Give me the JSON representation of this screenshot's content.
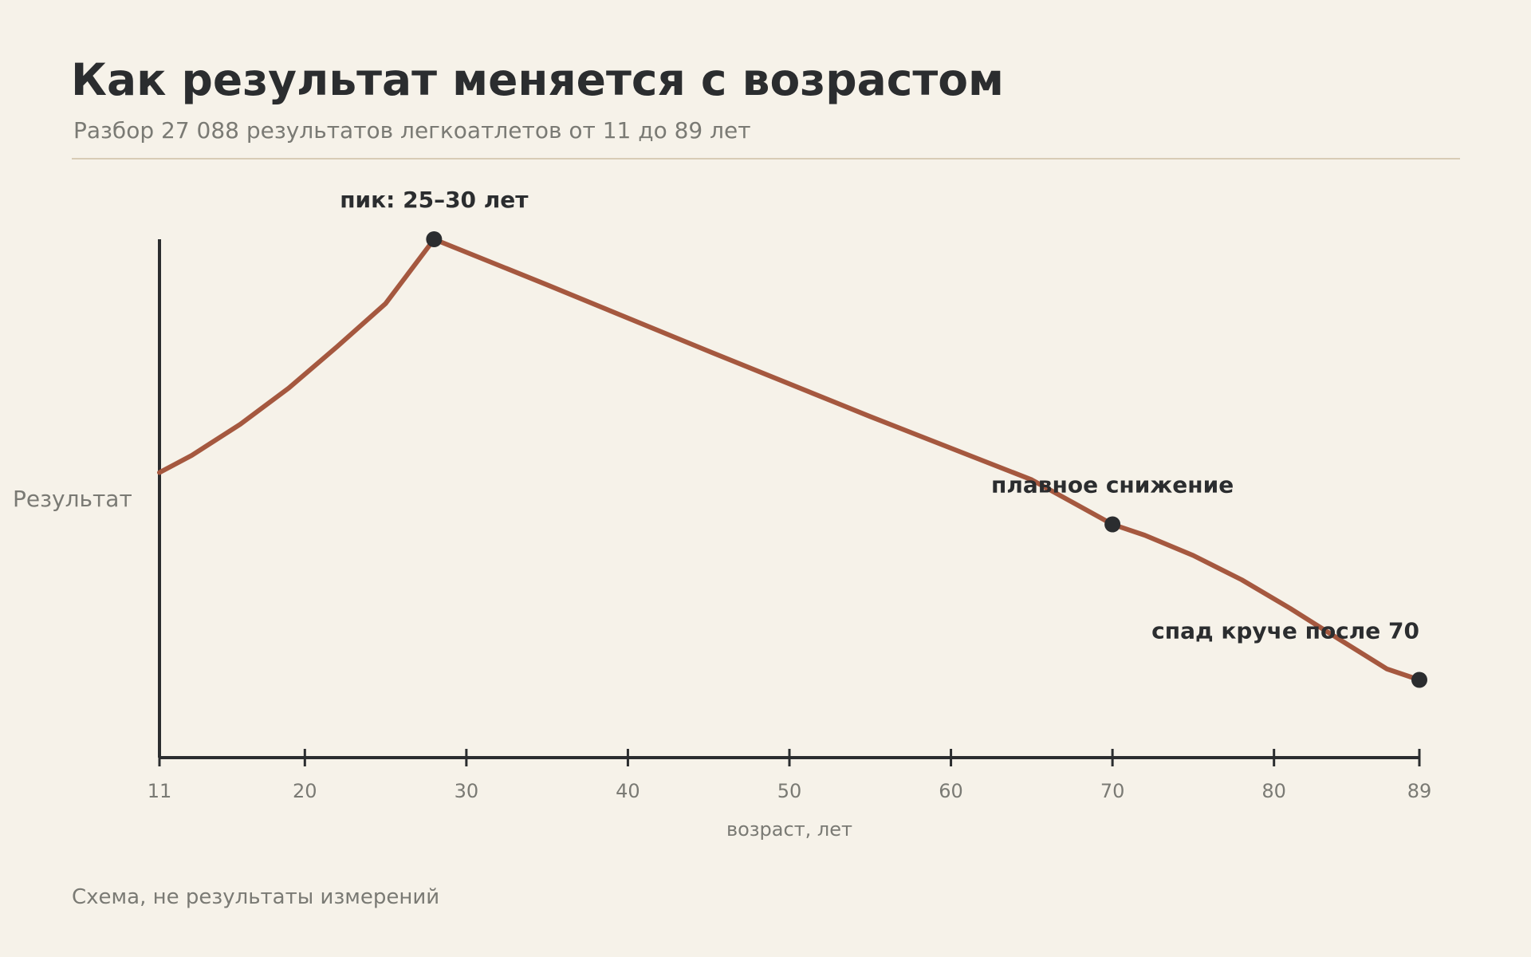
{
  "header": {
    "title": "Как результат меняется с возрастом",
    "subtitle": "Разбор 27 088 результатов легкоатлетов от 11 до 89 лет"
  },
  "footnote": "Схема, не результаты измерений",
  "colors": {
    "background": "#f6f2e9",
    "curve": "#a5583f",
    "axis": "#2b2d2f",
    "marker": "#2b2d2f",
    "muted_text": "#7a7a74",
    "rule": "#d8ccb6"
  },
  "chart_data": {
    "type": "line",
    "title": "",
    "xlabel": "возраст, лет",
    "ylabel": "Результат",
    "xlim": [
      11,
      89
    ],
    "ylim": [
      0,
      100
    ],
    "grid": false,
    "x_ticks": [
      11,
      20,
      30,
      40,
      50,
      60,
      70,
      80,
      89
    ],
    "y_ticks_shown": false,
    "series": [
      {
        "x": [
          11,
          13,
          16,
          19,
          22,
          25,
          28,
          35,
          45,
          55,
          65,
          70,
          72,
          75,
          78,
          81,
          84,
          87,
          89
        ],
        "values": [
          55,
          58.3,
          64.3,
          71.3,
          79.3,
          87.6,
          100,
          91.2,
          78.4,
          65.8,
          53.6,
          45,
          42.9,
          39,
          34.3,
          28.8,
          22.9,
          17.1,
          15
        ]
      }
    ],
    "annotations": [
      {
        "x": 28,
        "y": 100,
        "label": "пик: 25–30 лет"
      },
      {
        "x": 70,
        "y": 45,
        "label": "плавное снижение"
      },
      {
        "x": 89,
        "y": 15,
        "label": "спад круче после 70"
      }
    ]
  }
}
